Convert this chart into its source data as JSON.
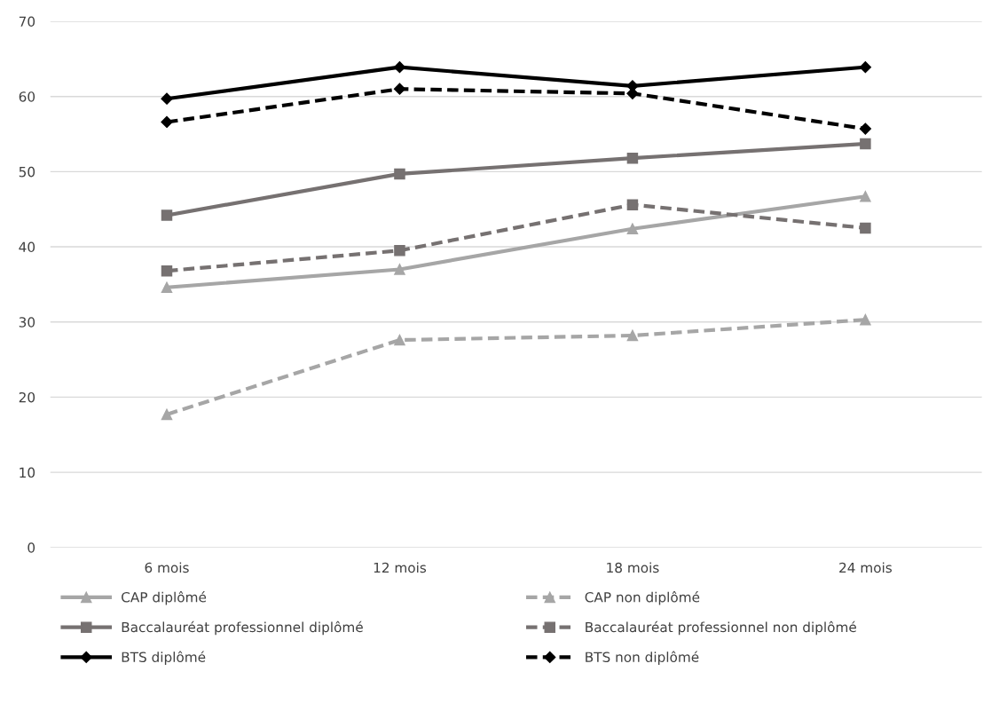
{
  "chart_data": {
    "type": "line",
    "categories": [
      "6 mois",
      "12 mois",
      "18 mois",
      "24 mois"
    ],
    "ylim": [
      0,
      70
    ],
    "yticks": [
      0,
      10,
      20,
      30,
      40,
      50,
      60,
      70
    ],
    "grid": "y",
    "legend": "bottom",
    "series": [
      {
        "name": "CAP diplômé",
        "color": "#a6a6a6",
        "marker": "triangle",
        "line_style": "solid",
        "values": [
          34.6,
          37.0,
          42.4,
          46.7
        ]
      },
      {
        "name": "CAP non diplômé",
        "color": "#a6a6a6",
        "marker": "triangle",
        "line_style": "dashed",
        "values": [
          17.7,
          27.6,
          28.2,
          30.3
        ]
      },
      {
        "name": "Baccalauréat professionnel diplômé",
        "color": "#767171",
        "marker": "square",
        "line_style": "solid",
        "values": [
          44.2,
          49.7,
          51.8,
          53.7
        ]
      },
      {
        "name": "Baccalauréat professionnel non diplômé",
        "color": "#767171",
        "marker": "square",
        "line_style": "dashed",
        "values": [
          36.8,
          39.5,
          45.6,
          42.5
        ]
      },
      {
        "name": "BTS diplômé",
        "color": "#000000",
        "marker": "diamond",
        "line_style": "solid",
        "values": [
          59.7,
          63.9,
          61.4,
          63.9
        ]
      },
      {
        "name": "BTS non diplômé",
        "color": "#000000",
        "marker": "diamond",
        "line_style": "dashed",
        "values": [
          56.6,
          61.0,
          60.4,
          55.7
        ]
      }
    ]
  }
}
